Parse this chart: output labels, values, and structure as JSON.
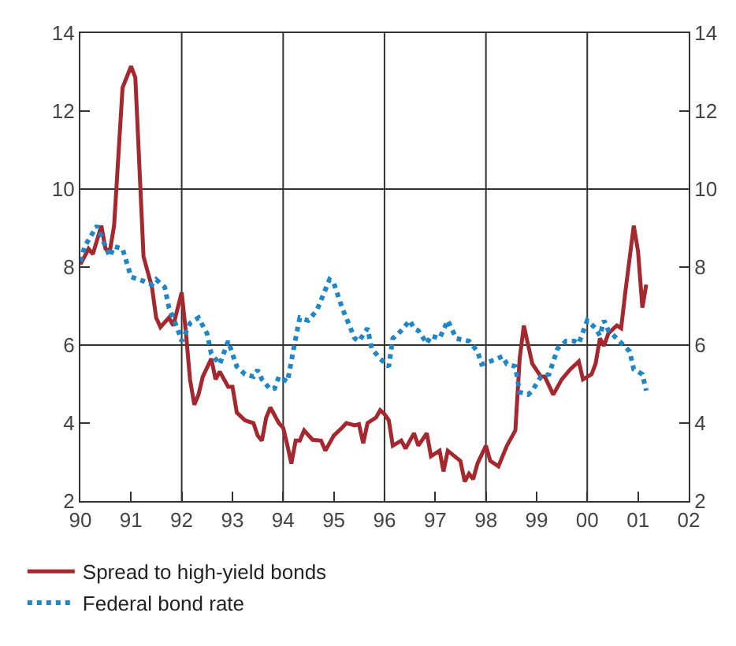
{
  "chart_data": {
    "type": "line",
    "xlim": [
      "1990-01",
      "2002-01"
    ],
    "xticks": [
      {
        "value": "1990",
        "label": "90"
      },
      {
        "value": "1991",
        "label": "91"
      },
      {
        "value": "1992",
        "label": "92"
      },
      {
        "value": "1993",
        "label": "93"
      },
      {
        "value": "1994",
        "label": "94"
      },
      {
        "value": "1995",
        "label": "95"
      },
      {
        "value": "1996",
        "label": "96"
      },
      {
        "value": "1997",
        "label": "97"
      },
      {
        "value": "1998",
        "label": "98"
      },
      {
        "value": "1999",
        "label": "99"
      },
      {
        "value": "2000",
        "label": "00"
      },
      {
        "value": "2001",
        "label": "01"
      },
      {
        "value": "2002",
        "label": "02"
      }
    ],
    "ylim": [
      2,
      14
    ],
    "yticks": [
      2,
      4,
      6,
      8,
      10,
      12,
      14
    ],
    "y2lim": [
      2,
      14
    ],
    "y2ticks": [
      2,
      4,
      6,
      8,
      10,
      12,
      14
    ],
    "legend": "bottom left",
    "ref_lines": [
      {
        "axis": "x",
        "value": "1992",
        "color": "#333333"
      },
      {
        "axis": "x",
        "value": "1994",
        "color": "#333333"
      },
      {
        "axis": "x",
        "value": "1996",
        "color": "#333333"
      },
      {
        "axis": "x",
        "value": "1998",
        "color": "#333333"
      },
      {
        "axis": "x",
        "value": "2000",
        "color": "#333333"
      },
      {
        "axis": "y",
        "value": 6,
        "color": "#333333"
      },
      {
        "axis": "y",
        "value": 10,
        "color": "#333333"
      }
    ],
    "series": [
      {
        "name": "Spread to high-yield bonds",
        "color": "#a5282e",
        "line_style": "solid",
        "x": [
          "1990-01",
          "1990-03",
          "1990-04",
          "1990-06",
          "1990-07",
          "1990-08",
          "1990-09",
          "1990-11",
          "1991-01",
          "1991-02",
          "1991-04",
          "1991-06",
          "1991-07",
          "1991-08",
          "1991-10",
          "1991-11",
          "1992-01",
          "1992-02",
          "1992-03",
          "1992-04",
          "1992-05",
          "1992-06",
          "1992-08",
          "1992-09",
          "1992-10",
          "1992-11",
          "1992-12",
          "1993-01",
          "1993-02",
          "1993-04",
          "1993-06",
          "1993-07",
          "1993-08",
          "1993-09",
          "1993-10",
          "1993-12",
          "1994-01",
          "1994-02",
          "1994-03",
          "1994-04",
          "1994-05",
          "1994-06",
          "1994-08",
          "1994-10",
          "1994-11",
          "1995-01",
          "1995-03",
          "1995-04",
          "1995-06",
          "1995-07",
          "1995-08",
          "1995-09",
          "1995-11",
          "1995-12",
          "1996-01",
          "1996-02",
          "1996-03",
          "1996-05",
          "1996-06",
          "1996-08",
          "1996-09",
          "1996-11",
          "1996-12",
          "1997-02",
          "1997-03",
          "1997-04",
          "1997-07",
          "1997-08",
          "1997-09",
          "1997-10",
          "1997-11",
          "1998-01",
          "1998-02",
          "1998-04",
          "1998-06",
          "1998-08",
          "1998-09",
          "1998-10",
          "1998-12",
          "1999-02",
          "1999-03",
          "1999-05",
          "1999-07",
          "1999-09",
          "1999-11",
          "1999-12",
          "2000-02",
          "2000-03",
          "2000-04",
          "2000-05",
          "2000-06",
          "2000-08",
          "2000-09",
          "2000-10",
          "2000-12",
          "2001-01",
          "2001-02",
          "2001-03"
        ],
        "values": [
          8.07,
          8.47,
          8.33,
          9.06,
          8.47,
          8.4,
          9.06,
          12.6,
          13.15,
          12.86,
          8.27,
          7.48,
          6.7,
          6.46,
          6.7,
          6.5,
          7.35,
          6.3,
          5.12,
          4.47,
          4.73,
          5.19,
          5.65,
          5.12,
          5.32,
          5.12,
          4.93,
          4.93,
          4.27,
          4.07,
          4.0,
          3.68,
          3.55,
          4.14,
          4.4,
          4.0,
          3.88,
          3.42,
          2.96,
          3.55,
          3.55,
          3.81,
          3.57,
          3.55,
          3.29,
          3.68,
          3.88,
          4.0,
          3.94,
          3.97,
          3.48,
          4.0,
          4.14,
          4.33,
          4.23,
          4.07,
          3.42,
          3.55,
          3.35,
          3.74,
          3.42,
          3.74,
          3.15,
          3.29,
          2.76,
          3.29,
          3.03,
          2.5,
          2.7,
          2.56,
          2.96,
          3.42,
          3.03,
          2.89,
          3.42,
          3.81,
          5.65,
          6.5,
          5.52,
          5.19,
          5.19,
          4.73,
          5.12,
          5.38,
          5.58,
          5.12,
          5.25,
          5.52,
          6.17,
          5.98,
          6.3,
          6.5,
          6.43,
          7.35,
          9.06,
          8.4,
          6.96,
          7.55
        ]
      },
      {
        "name": "Federal bond rate",
        "color": "#1f86c8",
        "line_style": "dotted",
        "x": [
          "1990-01",
          "1990-02",
          "1990-05",
          "1990-07",
          "1990-08",
          "1990-09",
          "1990-11",
          "1991-01",
          "1991-04",
          "1991-06",
          "1991-07",
          "1991-09",
          "1991-10",
          "1991-12",
          "1992-01",
          "1992-03",
          "1992-05",
          "1992-07",
          "1992-08",
          "1992-10",
          "1992-12",
          "1993-02",
          "1993-04",
          "1993-06",
          "1993-07",
          "1993-08",
          "1993-10",
          "1993-11",
          "1993-12",
          "1994-02",
          "1994-04",
          "1994-05",
          "1994-07",
          "1994-09",
          "1994-12",
          "1995-01",
          "1995-03",
          "1995-06",
          "1995-07",
          "1995-09",
          "1995-10",
          "1995-12",
          "1996-02",
          "1996-03",
          "1996-05",
          "1996-07",
          "1996-08",
          "1996-09",
          "1996-11",
          "1996-12",
          "1997-02",
          "1997-04",
          "1997-06",
          "1997-09",
          "1997-11",
          "1997-12",
          "1998-02",
          "1998-05",
          "1998-06",
          "1998-08",
          "1998-09",
          "1998-11",
          "1998-12",
          "1999-02",
          "1999-04",
          "1999-06",
          "1999-08",
          "1999-10",
          "1999-11",
          "2000-01",
          "2000-03",
          "2000-04",
          "2000-05",
          "2000-06",
          "2000-08",
          "2000-11",
          "2000-12",
          "2001-02",
          "2001-03"
        ],
        "values": [
          8.14,
          8.53,
          9.06,
          8.53,
          8.27,
          8.53,
          8.47,
          7.75,
          7.64,
          7.55,
          7.68,
          7.48,
          6.96,
          6.43,
          6.1,
          6.56,
          6.7,
          6.3,
          5.78,
          5.51,
          6.1,
          5.45,
          5.25,
          5.19,
          5.36,
          5.12,
          4.86,
          4.89,
          5.19,
          5.06,
          6.17,
          6.7,
          6.63,
          6.89,
          7.68,
          7.59,
          6.96,
          6.17,
          6.1,
          6.43,
          5.91,
          5.65,
          5.45,
          6.17,
          6.37,
          6.63,
          6.43,
          6.37,
          6.04,
          6.24,
          6.17,
          6.63,
          6.17,
          6.1,
          5.84,
          5.51,
          5.58,
          5.71,
          5.51,
          5.45,
          4.79,
          4.73,
          4.83,
          5.19,
          5.25,
          5.91,
          6.1,
          6.1,
          6.04,
          6.63,
          6.43,
          6.24,
          6.63,
          6.37,
          6.17,
          5.84,
          5.38,
          5.25,
          4.83
        ]
      }
    ]
  }
}
